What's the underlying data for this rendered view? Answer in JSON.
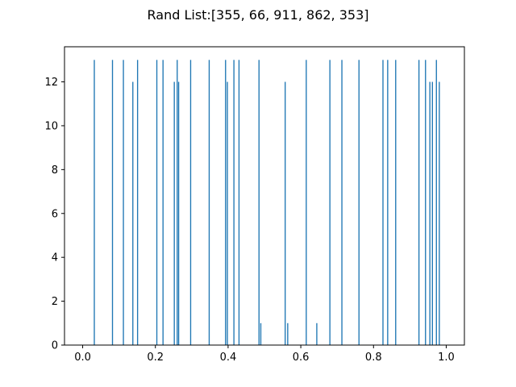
{
  "chart_data": {
    "type": "bar",
    "title": "Rand List:[355, 66, 911, 862, 353]",
    "xlabel": "",
    "ylabel": "",
    "xlim": [
      -0.05,
      1.05
    ],
    "ylim": [
      0,
      13.6
    ],
    "x_ticks": [
      0.0,
      0.2,
      0.4,
      0.6,
      0.8,
      1.0
    ],
    "x_tick_labels": [
      "0.0",
      "0.2",
      "0.4",
      "0.6",
      "0.8",
      "1.0"
    ],
    "y_ticks": [
      0,
      2,
      4,
      6,
      8,
      10,
      12
    ],
    "y_tick_labels": [
      "0",
      "2",
      "4",
      "6",
      "8",
      "10",
      "12"
    ],
    "grid": false,
    "bar_width": 0.003,
    "bar_color": "#1f77b4",
    "x": [
      0.032,
      0.082,
      0.112,
      0.138,
      0.151,
      0.204,
      0.221,
      0.252,
      0.26,
      0.264,
      0.297,
      0.348,
      0.393,
      0.398,
      0.416,
      0.43,
      0.485,
      0.49,
      0.557,
      0.564,
      0.615,
      0.644,
      0.68,
      0.713,
      0.76,
      0.826,
      0.839,
      0.861,
      0.925,
      0.943,
      0.955,
      0.962,
      0.973,
      0.981
    ],
    "values": [
      13,
      13,
      13,
      12,
      13,
      13,
      13,
      12,
      13,
      12,
      13,
      13,
      13,
      12,
      13,
      13,
      13,
      1,
      12,
      1,
      13,
      1,
      13,
      13,
      13,
      13,
      13,
      13,
      13,
      13,
      12,
      12,
      13,
      12
    ]
  }
}
